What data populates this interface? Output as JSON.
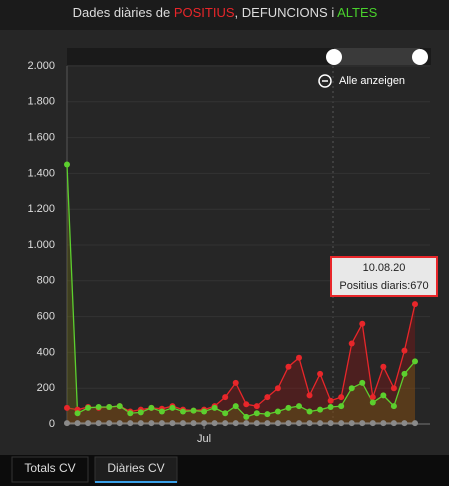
{
  "chart_data": {
    "type": "line",
    "title": [
      {
        "text": "Dades diàries de ",
        "color": "#dddddd"
      },
      {
        "text": "POSITIUS",
        "color": "#e8262a"
      },
      {
        "text": ", DEFUNCIONS i ",
        "color": "#dddddd"
      },
      {
        "text": "ALTES",
        "color": "#49d12c"
      }
    ],
    "categories": [
      null,
      null,
      null,
      null,
      null,
      null,
      null,
      null,
      null,
      null,
      null,
      null,
      null,
      "Jul",
      null,
      null,
      null,
      null,
      null,
      null,
      null,
      null,
      null,
      null,
      null,
      null,
      null,
      null,
      null,
      null,
      null,
      null,
      null,
      null
    ],
    "series": [
      {
        "color": "#e8262a",
        "fill": "rgba(150,20,20,0.35)",
        "values": [
          90,
          80,
          95,
          90,
          95,
          100,
          70,
          80,
          90,
          85,
          100,
          80,
          75,
          80,
          100,
          150,
          230,
          110,
          100,
          150,
          200,
          320,
          370,
          160,
          280,
          130,
          150,
          450,
          560,
          150,
          320,
          200,
          410,
          670
        ]
      },
      {
        "color": "#5ccf2e",
        "fill": "rgba(110,110,20,0.35)",
        "values": [
          1450,
          60,
          90,
          95,
          95,
          100,
          60,
          65,
          90,
          70,
          90,
          70,
          75,
          70,
          90,
          60,
          100,
          40,
          60,
          55,
          70,
          90,
          100,
          70,
          80,
          95,
          100,
          200,
          230,
          120,
          160,
          100,
          280,
          350
        ]
      },
      {
        "color": "#8a8a8a",
        "fill": null,
        "values": [
          5,
          5,
          5,
          5,
          5,
          5,
          5,
          5,
          5,
          5,
          5,
          5,
          5,
          5,
          5,
          5,
          5,
          5,
          5,
          5,
          5,
          5,
          5,
          5,
          5,
          5,
          5,
          5,
          5,
          5,
          5,
          5,
          5,
          5
        ]
      }
    ],
    "ylim": [
      0,
      2000
    ],
    "yticks": [
      0,
      200,
      400,
      600,
      800,
      {
        "value": 1000,
        "label": "1.000"
      },
      {
        "value": 1200,
        "label": "1.200"
      },
      {
        "value": 1400,
        "label": "1.400"
      },
      {
        "value": 1600,
        "label": "1.600"
      },
      {
        "value": 1800,
        "label": "1.800"
      },
      {
        "value": 2000,
        "label": "2.000"
      }
    ],
    "grid": true,
    "zoom_label": "Alle anzeigen",
    "tooltip": {
      "date": "10.08.20",
      "label": "Positius diaris:"
    }
  },
  "tabs": [
    "Totals CV",
    "Diàries CV"
  ]
}
